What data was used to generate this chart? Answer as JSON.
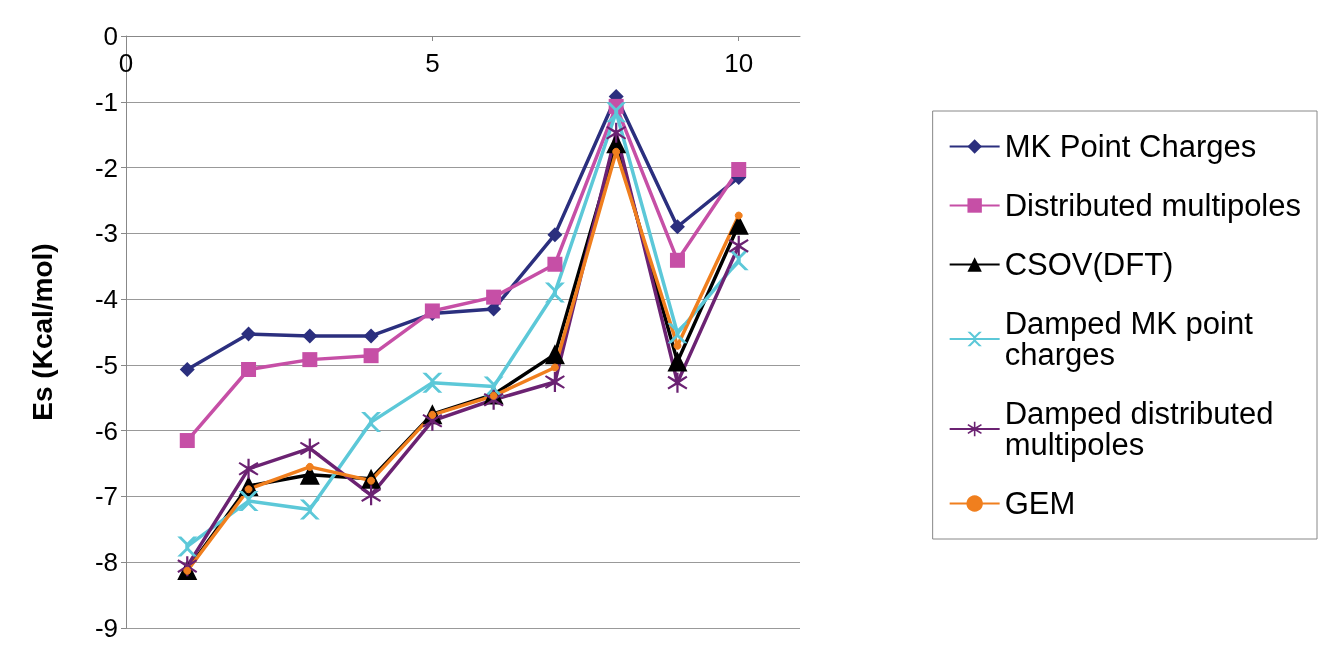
{
  "chart_data": {
    "type": "line",
    "ylabel": "Es (Kcal/mol)",
    "x": [
      1,
      2,
      3,
      4,
      5,
      6,
      7,
      8,
      9,
      10
    ],
    "xlim": [
      0,
      11
    ],
    "xticks": [
      0,
      5,
      10
    ],
    "ylim": [
      -9,
      0
    ],
    "yticks": [
      -9,
      -8,
      -7,
      -6,
      -5,
      -4,
      -3,
      -2,
      -1,
      0
    ],
    "grid": "y",
    "legend": "right",
    "line_style": "solid",
    "series": [
      {
        "name": "MK Point Charges",
        "color": "#2b2f7e",
        "marker": "diamond",
        "values": [
          -5.07,
          -4.53,
          -4.56,
          -4.56,
          -4.22,
          -4.15,
          -3.02,
          -0.92,
          -2.9,
          -2.15
        ]
      },
      {
        "name": "Distributed multipoles",
        "color": "#c64fa6",
        "marker": "square",
        "values": [
          -6.15,
          -5.07,
          -4.92,
          -4.86,
          -4.18,
          -3.97,
          -3.47,
          -1.07,
          -3.41,
          -2.03
        ]
      },
      {
        "name": "CSOV(DFT)",
        "color": "#000000",
        "marker": "triangle",
        "values": [
          -8.12,
          -6.84,
          -6.67,
          -6.73,
          -5.75,
          -5.45,
          -4.84,
          -1.63,
          -4.95,
          -2.87
        ]
      },
      {
        "name": "Damped MK point charges",
        "color": "#5cc8d8",
        "marker": "cross",
        "values": [
          -7.76,
          -7.07,
          -7.2,
          -5.87,
          -5.27,
          -5.33,
          -3.9,
          -1.16,
          -4.52,
          -3.41
        ]
      },
      {
        "name": "Damped distributed multipoles",
        "color": "#6b2272",
        "marker": "star",
        "values": [
          -8.06,
          -6.58,
          -6.27,
          -6.98,
          -5.85,
          -5.53,
          -5.26,
          -1.47,
          -5.27,
          -3.19
        ]
      },
      {
        "name": "GEM",
        "color": "#f07f1e",
        "marker": "circle",
        "values": [
          -8.13,
          -6.89,
          -6.55,
          -6.76,
          -5.76,
          -5.47,
          -5.04,
          -1.76,
          -4.71,
          -2.73
        ]
      }
    ]
  }
}
